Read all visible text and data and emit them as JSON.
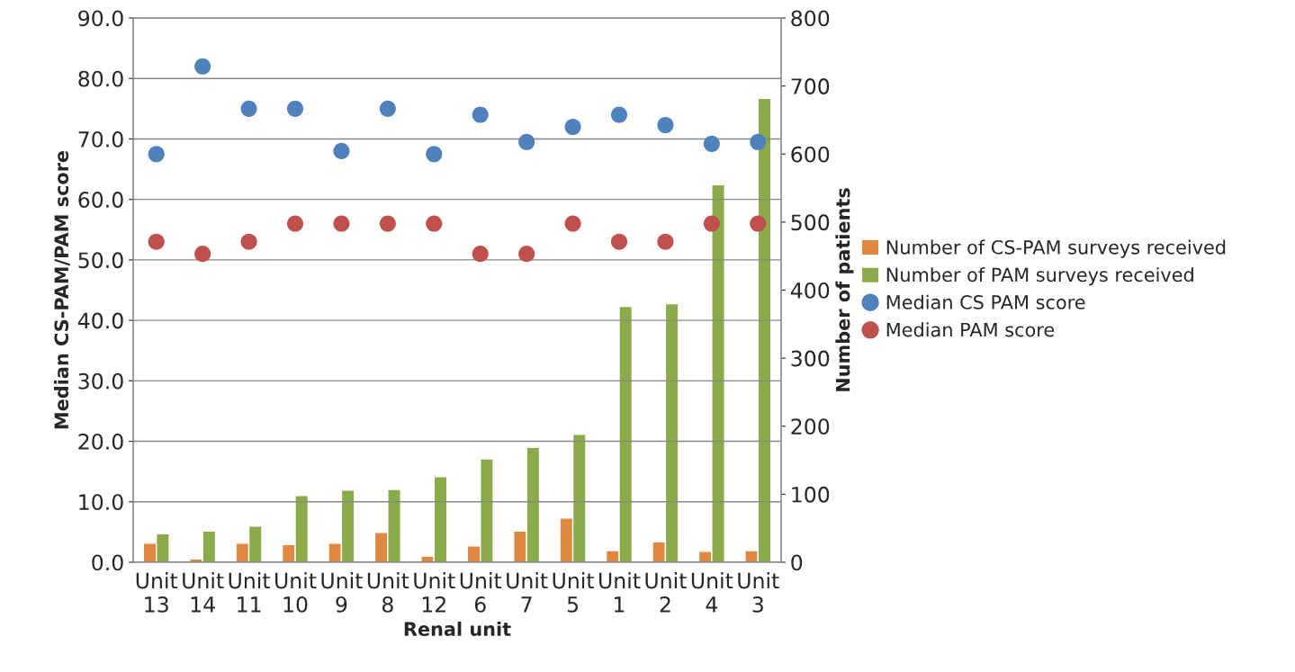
{
  "chart_data": {
    "type": "bar",
    "xlabel": "Renal unit",
    "ylabel": "Median CS-PAM/PAM score",
    "y2label": "Number of patients",
    "categories": [
      "Unit 13",
      "Unit 14",
      "Unit 11",
      "Unit 10",
      "Unit 9",
      "Unit 8",
      "Unit 12",
      "Unit 6",
      "Unit 7",
      "Unit 5",
      "Unit 1",
      "Unit 2",
      "Unit 4",
      "Unit 3"
    ],
    "series": [
      {
        "name": "Number of CS-PAM surveys received",
        "axis": "y2",
        "color": "#e0883f",
        "values": [
          28,
          5,
          28,
          26,
          28,
          44,
          9,
          24,
          46,
          65,
          17,
          30,
          16,
          17
        ]
      },
      {
        "name": "Number of PAM surveys received",
        "axis": "y2",
        "color": "#8bab4a",
        "values": [
          42,
          46,
          53,
          98,
          106,
          107,
          126,
          152,
          169,
          188,
          376,
          380,
          555,
          682
        ]
      },
      {
        "name": "Median CS PAM score",
        "type": "scatter",
        "color": "#4f81bd",
        "values": [
          67.5,
          82,
          75,
          75,
          68,
          75,
          67.5,
          74,
          69.5,
          72,
          74,
          72.3,
          69.2,
          69.5
        ]
      },
      {
        "name": "Median PAM score",
        "type": "scatter",
        "color": "#c0504d",
        "values": [
          53,
          51,
          53,
          56,
          56,
          56,
          56,
          51,
          51,
          56,
          53,
          53,
          56,
          56
        ]
      }
    ],
    "ylim": [
      0,
      90
    ],
    "yticks": [
      {
        "value": 0,
        "label": "0.0"
      },
      {
        "value": 10,
        "label": "10.0"
      },
      {
        "value": 20,
        "label": "20.0"
      },
      {
        "value": 30,
        "label": "30.0"
      },
      {
        "value": 40,
        "label": "40.0"
      },
      {
        "value": 50,
        "label": "50.0"
      },
      {
        "value": 60,
        "label": "60.0"
      },
      {
        "value": 70,
        "label": "70.0"
      },
      {
        "value": 80,
        "label": "80.0"
      },
      {
        "value": 90,
        "label": "90.0"
      }
    ],
    "y2lim": [
      0,
      800
    ],
    "y2ticks": [
      0,
      100,
      200,
      300,
      400,
      500,
      600,
      700,
      800
    ],
    "grid": "y",
    "legend": "right",
    "marker": "circle"
  }
}
